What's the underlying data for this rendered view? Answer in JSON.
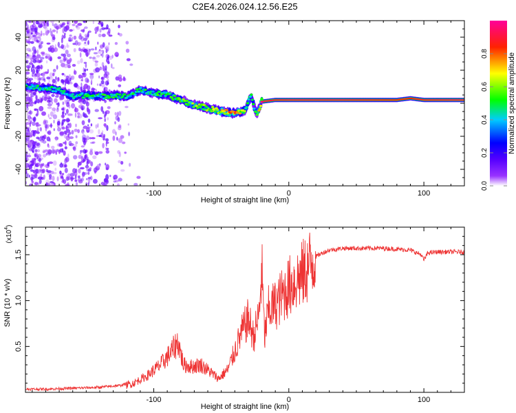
{
  "title": "C2E4.2026.024.12.56.E25",
  "chart_data": [
    {
      "type": "heatmap",
      "title": "C2E4.2026.024.12.56.E25",
      "xlabel": "Height of straight line (km)",
      "ylabel": "Frequency (Hz)",
      "xlim": [
        -195,
        130
      ],
      "ylim": [
        -50,
        50
      ],
      "xticks": [
        -100,
        0,
        100
      ],
      "xtick_labels": [
        "-100",
        "0",
        "100"
      ],
      "yticks": [
        -40,
        -20,
        0,
        20,
        40
      ],
      "ytick_labels": [
        "-40",
        "-20",
        "0",
        "20",
        "40"
      ],
      "colorbar": {
        "label": "Normalized spectral amplitude",
        "range": [
          0,
          1
        ],
        "ticks": [
          0,
          0.2,
          0.4,
          0.6,
          0.8
        ],
        "tick_labels": [
          "0.0",
          "0.2",
          "0.4",
          "0.6",
          "0.8"
        ],
        "colors": [
          "#ffffff",
          "#8000ff",
          "#0000ff",
          "#00ffff",
          "#00ff00",
          "#ffff00",
          "#ff0000",
          "#ff0080"
        ]
      },
      "ridge": {
        "x": [
          -195,
          -180,
          -170,
          -160,
          -150,
          -140,
          -130,
          -120,
          -110,
          -100,
          -90,
          -80,
          -70,
          -60,
          -50,
          -40,
          -32,
          -28,
          -24,
          -20,
          -10,
          0,
          20,
          40,
          60,
          80,
          90,
          100,
          120,
          130
        ],
        "freq": [
          10,
          9,
          8,
          4,
          5,
          4,
          5,
          4,
          8,
          6,
          5,
          2,
          -1,
          -3,
          -5,
          -6,
          -4,
          5,
          -7,
          1,
          2,
          2,
          2,
          2,
          2,
          2,
          3,
          2,
          2,
          2
        ],
        "amplitude": [
          0.45,
          0.5,
          0.45,
          0.5,
          0.5,
          0.5,
          0.5,
          0.5,
          0.5,
          0.5,
          0.55,
          0.55,
          0.6,
          0.6,
          0.75,
          0.85,
          0.6,
          0.5,
          0.5,
          0.95,
          0.9,
          0.95,
          0.95,
          0.95,
          0.9,
          0.85,
          0.85,
          0.9,
          0.95,
          0.95
        ]
      }
    },
    {
      "type": "line",
      "xlabel": "Height of straight line (km)",
      "ylabel": "SNR (10 * v/v)",
      "multiplier_label": "(x10",
      "multiplier_exponent": "4",
      "multiplier_close": ")",
      "xlim": [
        -195,
        130
      ],
      "ylim": [
        0,
        1.8
      ],
      "xticks": [
        -100,
        0,
        100
      ],
      "xtick_labels": [
        "-100",
        "0",
        "100"
      ],
      "yticks": [
        0.5,
        1.0,
        1.5
      ],
      "ytick_labels": [
        "0.5",
        "1.0",
        "1.5"
      ],
      "color": "#ee3333",
      "series": [
        {
          "name": "SNR",
          "x": [
            -195,
            -180,
            -160,
            -140,
            -125,
            -115,
            -105,
            -95,
            -88,
            -82,
            -78,
            -72,
            -65,
            -58,
            -52,
            -45,
            -40,
            -35,
            -30,
            -26,
            -22,
            -20,
            -18,
            -15,
            -10,
            -5,
            0,
            5,
            10,
            15,
            20,
            25,
            30,
            40,
            50,
            60,
            70,
            80,
            90,
            98,
            100,
            103,
            110,
            120,
            130
          ],
          "y": [
            0.02,
            0.02,
            0.03,
            0.04,
            0.06,
            0.1,
            0.18,
            0.3,
            0.42,
            0.55,
            0.3,
            0.28,
            0.3,
            0.22,
            0.15,
            0.25,
            0.45,
            0.65,
            0.8,
            0.6,
            0.85,
            1.35,
            0.6,
            0.9,
            0.95,
            1.05,
            1.15,
            1.22,
            1.28,
            1.38,
            1.48,
            1.52,
            1.55,
            1.57,
            1.57,
            1.57,
            1.57,
            1.56,
            1.55,
            1.5,
            1.44,
            1.52,
            1.53,
            1.53,
            1.53
          ]
        }
      ]
    }
  ]
}
